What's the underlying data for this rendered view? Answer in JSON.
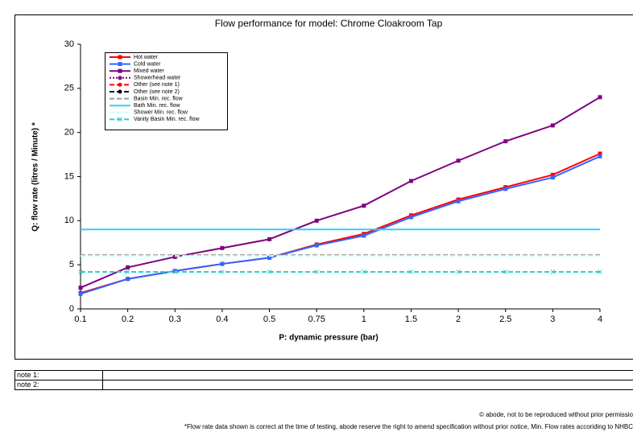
{
  "chart_data": {
    "type": "line",
    "title": "Flow performance for model: Chrome Cloakroom Tap",
    "x_label": "P: dynamic pressure (bar)",
    "y_label": "Q: flow rate (litres  / Minute) *",
    "categories": [
      "0.1",
      "0.2",
      "0.3",
      "0.4",
      "0.5",
      "0.75",
      "1",
      "1.5",
      "2",
      "2.5",
      "3",
      "4"
    ],
    "ylim": [
      0,
      30
    ],
    "yticks": [
      0,
      5,
      10,
      15,
      20,
      25,
      30
    ],
    "series": [
      {
        "name": "Hot water",
        "color": "#ff0000",
        "line_style": "solid",
        "marker": "square",
        "values": [
          1.8,
          3.4,
          4.3,
          5.1,
          5.8,
          7.3,
          8.5,
          10.6,
          12.4,
          13.8,
          15.2,
          17.6
        ]
      },
      {
        "name": "Cold water",
        "color": "#3366ff",
        "line_style": "solid",
        "marker": "square",
        "values": [
          1.7,
          3.4,
          4.3,
          5.1,
          5.8,
          7.2,
          8.3,
          10.4,
          12.2,
          13.6,
          14.9,
          17.3
        ]
      },
      {
        "name": "Mixed water",
        "color": "#800080",
        "line_style": "solid",
        "marker": "square",
        "values": [
          2.4,
          4.7,
          5.9,
          6.9,
          7.9,
          10.0,
          11.7,
          14.5,
          16.8,
          19.0,
          20.8,
          24.0
        ]
      },
      {
        "name": "Showerhead water",
        "color": "#800080",
        "line_style": "dotted",
        "marker": "circle",
        "values": [
          null,
          null,
          null,
          null,
          null,
          null,
          null,
          null,
          null,
          null,
          null,
          null
        ]
      },
      {
        "name": "Other (see note 1)",
        "color": "#ff0000",
        "line_style": "dashed",
        "marker": "circle",
        "values": [
          null,
          null,
          null,
          null,
          null,
          null,
          null,
          null,
          null,
          null,
          null,
          null
        ]
      },
      {
        "name": "Other (see note 2)",
        "color": "#000000",
        "line_style": "dashed",
        "marker": "circle",
        "values": [
          null,
          null,
          null,
          null,
          null,
          null,
          null,
          null,
          null,
          null,
          null,
          null
        ]
      },
      {
        "name": "Basin Min. rec. flow",
        "color": "#999999",
        "line_style": "dashed",
        "marker": "none",
        "values": [
          6.1,
          6.1,
          6.1,
          6.1,
          6.1,
          6.1,
          6.1,
          6.1,
          6.1,
          6.1,
          6.1,
          6.1
        ]
      },
      {
        "name": "Bath Min. rec. flow",
        "color": "#33ccff",
        "line_style": "solid",
        "marker": "none",
        "values": [
          9,
          9,
          9,
          9,
          9,
          9,
          9,
          9,
          9,
          9,
          9,
          9
        ]
      },
      {
        "name": "Shower Min. rec. flow",
        "color": "#ccffff",
        "line_style": "dashed",
        "marker": "none",
        "values": [
          6,
          6,
          6,
          6,
          6,
          6,
          6,
          6,
          6,
          6,
          6,
          6
        ]
      },
      {
        "name": "Vanity Basin Min. rec. flow",
        "color": "#33cccc",
        "line_style": "dashed",
        "marker": "x",
        "values": [
          4.2,
          4.2,
          4.2,
          4.2,
          4.2,
          4.2,
          4.2,
          4.2,
          4.2,
          4.2,
          4.2,
          4.2
        ]
      }
    ]
  },
  "notes": [
    "note 1:",
    "note 2:"
  ],
  "copyright": "© abode, not to be reproduced without prior permissio",
  "disclaimer": "*Flow rate data shown is correct at the time of testing, abode reserve the right to amend specification without prior notice, Min. Flow rates accoriding to NHBC"
}
